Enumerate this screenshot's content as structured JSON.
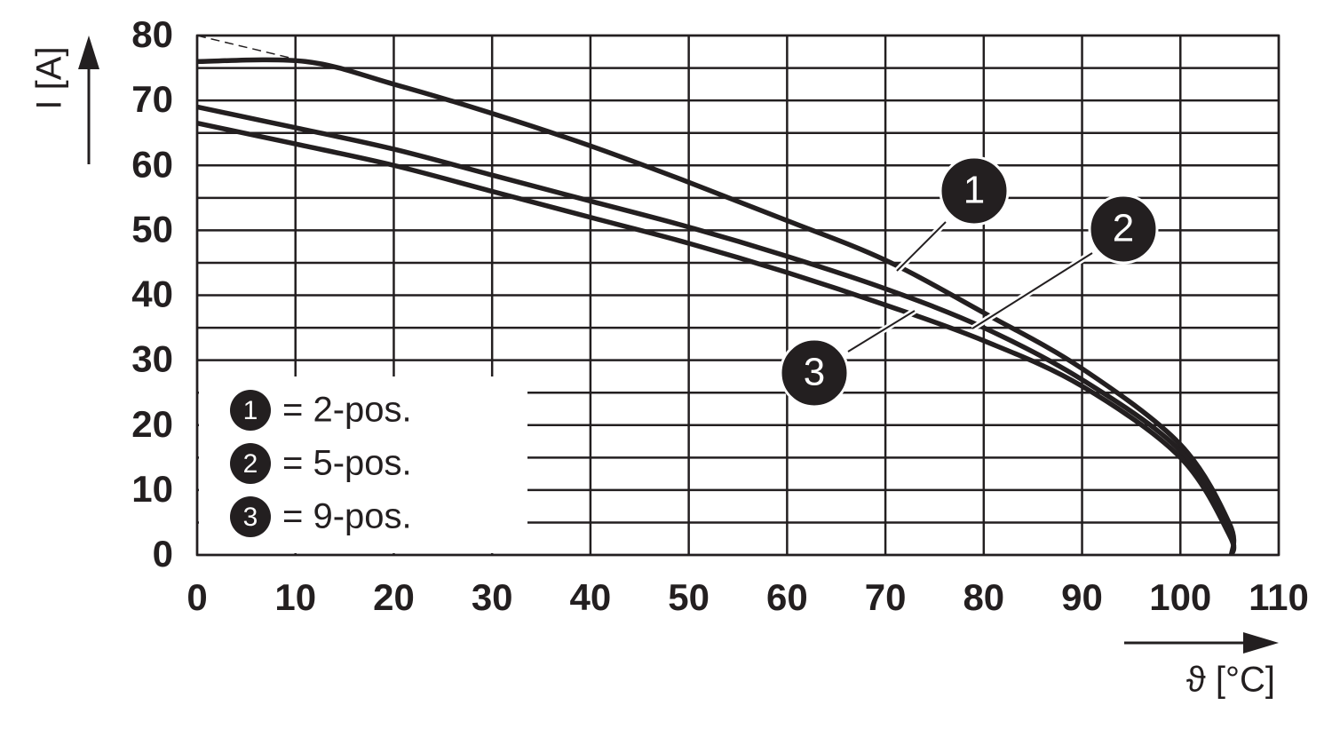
{
  "chart_data": {
    "type": "line",
    "x_label": "ϑ [°C]",
    "y_label": "I [A]",
    "xlim": [
      0,
      110
    ],
    "ylim": [
      0,
      80
    ],
    "xticks": [
      0,
      10,
      20,
      30,
      40,
      50,
      60,
      70,
      80,
      90,
      100,
      110
    ],
    "yticks": [
      0,
      10,
      20,
      30,
      40,
      50,
      60,
      70,
      80
    ],
    "yminor": [
      5,
      15,
      25,
      35,
      45,
      55,
      65,
      75
    ],
    "grid": true,
    "color": "#231f20",
    "series": [
      {
        "marker": "1",
        "name": "= 2-pos.",
        "color": "#231f20",
        "x": [
          0,
          11,
          20,
          30,
          40,
          50,
          60,
          70,
          80,
          90,
          100,
          105,
          105.2
        ],
        "values": [
          76,
          76,
          72.5,
          68,
          63,
          57.4,
          51.5,
          45.4,
          37.3,
          28.7,
          17,
          4.8,
          0
        ],
        "dashed_x": [
          0,
          11
        ],
        "dashed_values": [
          80,
          76
        ]
      },
      {
        "marker": "2",
        "name": "= 5-pos.",
        "color": "#231f20",
        "x": [
          0,
          10,
          20,
          30,
          40,
          50,
          60,
          70,
          80,
          90,
          100,
          105,
          105.2
        ],
        "values": [
          69,
          65.8,
          62.5,
          58.5,
          54.5,
          50.5,
          46,
          41,
          35,
          27,
          16,
          3.5,
          0
        ]
      },
      {
        "marker": "3",
        "name": "= 9-pos.",
        "color": "#231f20",
        "x": [
          0,
          10,
          20,
          30,
          40,
          50,
          60,
          70,
          80,
          90,
          100,
          105,
          105.2
        ],
        "values": [
          66.5,
          63.3,
          60,
          56,
          52,
          48,
          43.5,
          38.5,
          33,
          26,
          15,
          3,
          0
        ]
      }
    ]
  }
}
